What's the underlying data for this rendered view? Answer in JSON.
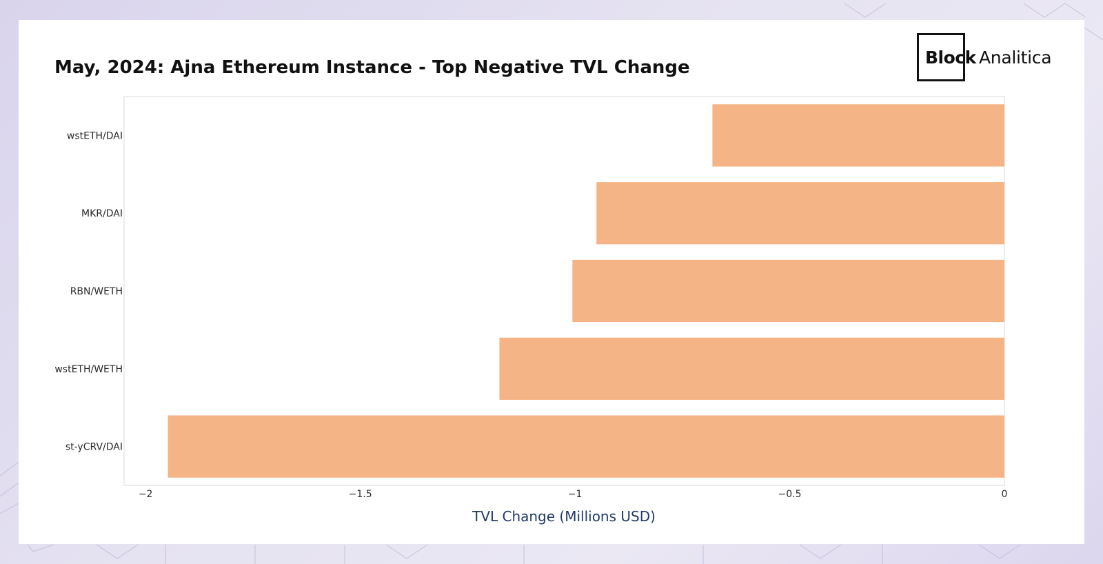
{
  "page": {
    "background_color": "#e4e1f1",
    "card_color": "#ffffff"
  },
  "logo": {
    "bold_text": "Block",
    "light_text": "Analitica"
  },
  "chart_data": {
    "type": "bar",
    "orientation": "horizontal",
    "title": "May, 2024: Ajna Ethereum Instance - Top Negative TVL Change",
    "categories": [
      "wstETH/DAI",
      "MKR/DAI",
      "RBN/WETH",
      "wstETH/WETH",
      "st-yCRV/DAI"
    ],
    "values": [
      -0.68,
      -0.95,
      -1.006,
      -1.176,
      -1.948
    ],
    "xlabel": "TVL Change (Millions USD)",
    "ylabel": "",
    "xlim": [
      -2.05,
      0
    ],
    "xticks": [
      -2,
      -1.5,
      -1,
      -0.5,
      0
    ],
    "xtick_labels": [
      "−2",
      "−1.5",
      "−1",
      "−0.5",
      "0"
    ],
    "bar_color": "#f5b485",
    "axis_color": "#d8dbe0",
    "xlabel_color": "#1f3a68",
    "grid": false,
    "legend": false
  }
}
